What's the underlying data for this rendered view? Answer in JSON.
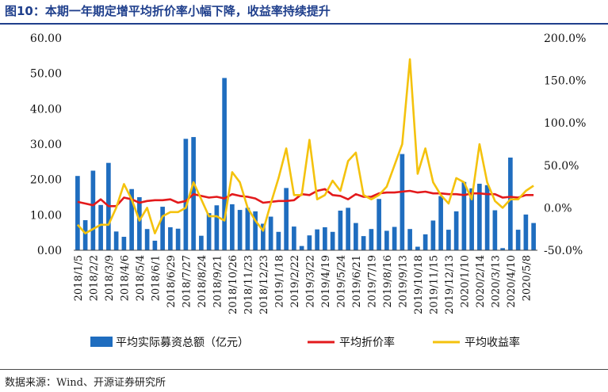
{
  "title": "图10：本期一年期定增平均折价率小幅下降，收益率持续提升",
  "source": "数据来源：Wind、开源证券研究所",
  "colors": {
    "bar": "#1f6dbf",
    "discount_line": "#e31a1c",
    "yield_line": "#f4c20d",
    "title": "#1f3f8c"
  },
  "chart_data": {
    "type": "bar+line",
    "legend_position": "bottom",
    "grid": false,
    "left_axis": {
      "min": 0,
      "max": 60,
      "ticks": [
        "0.00",
        "10.00",
        "20.00",
        "30.00",
        "40.00",
        "50.00",
        "60.00"
      ]
    },
    "right_axis": {
      "min": -50,
      "max": 200,
      "ticks": [
        "-50.0%",
        "0.0%",
        "50.0%",
        "100.0%",
        "150.0%",
        "200.0%"
      ]
    },
    "x_tick_labels": [
      "2018/1/5",
      "2018/2/2",
      "2018/3/9",
      "2018/4/6",
      "2018/5/4",
      "2018/6/1",
      "2018/6/29",
      "2018/7/27",
      "2018/8/24",
      "2018/9/21",
      "2018/10/26",
      "2018/11/23",
      "2018/12/23",
      "2019/1/18",
      "2019/2/22",
      "2019/3/22",
      "2019/4/19",
      "2019/5/24",
      "2019/6/21",
      "2019/7/19",
      "2019/8/16",
      "2019/9/13",
      "2019/10/18",
      "2019/11/15",
      "2019/12/13",
      "2020/1/10",
      "2020/2/14",
      "2020/3/13",
      "2020/4/10",
      "2020/5/8"
    ],
    "series": [
      {
        "name": "平均实际募资总额（亿元）",
        "axis": "left",
        "kind": "bar",
        "values": [
          21.0,
          8.5,
          22.5,
          12.8,
          24.7,
          5.3,
          3.8,
          17.3,
          15.0,
          6.0,
          2.7,
          12.3,
          6.5,
          6.1,
          31.5,
          32.0,
          4.1,
          10.5,
          12.7,
          48.7,
          13.0,
          11.4,
          12.0,
          11.0,
          7.5,
          9.5,
          5.2,
          17.6,
          6.7,
          1.2,
          4.2,
          5.9,
          6.5,
          5.2,
          11.2,
          12.0,
          7.7,
          4.0,
          6.0,
          14.5,
          5.5,
          6.6,
          27.2,
          6.0,
          1.0,
          4.5,
          8.4,
          15.3,
          5.8,
          11.0,
          19.3,
          17.5,
          18.8,
          18.4,
          11.3,
          0.6,
          26.2,
          5.8,
          10.1,
          7.7
        ]
      },
      {
        "name": "平均折价率",
        "axis": "right",
        "kind": "line",
        "values": [
          7.0,
          5.0,
          3.0,
          10.0,
          2.0,
          2.0,
          12.0,
          10.0,
          6.0,
          8.0,
          9.0,
          9.0,
          10.0,
          6.0,
          8.0,
          16.0,
          14.0,
          12.0,
          13.0,
          11.0,
          16.0,
          14.0,
          13.0,
          11.0,
          6.0,
          7.0,
          8.0,
          8.0,
          9.0,
          16.0,
          15.0,
          20.0,
          22.0,
          15.0,
          14.0,
          10.0,
          16.0,
          13.0,
          13.0,
          17.0,
          18.0,
          18.0,
          19.0,
          20.0,
          18.0,
          19.0,
          17.0,
          17.0,
          16.0,
          16.0,
          15.0,
          17.0,
          17.0,
          16.0,
          16.0,
          12.0,
          13.0,
          12.0,
          15.0,
          15.0
        ]
      },
      {
        "name": "平均收益率",
        "axis": "right",
        "kind": "line",
        "values": [
          -20.0,
          -30.0,
          -25.0,
          -20.0,
          -20.0,
          0.0,
          28.0,
          10.0,
          -15.0,
          0.0,
          -30.0,
          -10.0,
          -5.0,
          -5.0,
          0.0,
          30.0,
          10.0,
          -10.0,
          -10.0,
          -15.0,
          42.0,
          30.0,
          0.0,
          -15.0,
          -27.0,
          5.0,
          35.0,
          70.0,
          15.0,
          15.0,
          80.0,
          10.0,
          15.0,
          32.0,
          20.0,
          55.0,
          65.0,
          15.0,
          10.0,
          15.0,
          25.0,
          50.0,
          75.0,
          175.0,
          40.0,
          70.0,
          30.0,
          15.0,
          5.0,
          35.0,
          30.0,
          10.0,
          75.0,
          30.0,
          8.0,
          0.0,
          10.0,
          10.0,
          20.0,
          26.0
        ]
      }
    ]
  }
}
